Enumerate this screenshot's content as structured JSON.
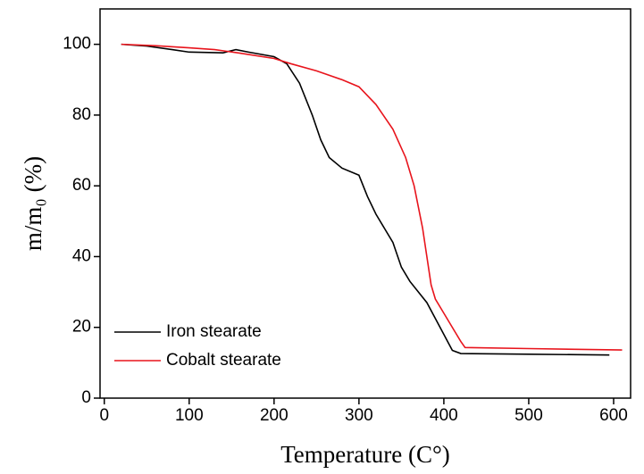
{
  "chart_data": {
    "type": "line",
    "xlabel": "Temperature (C°)",
    "ylabel": "m/m₀ (%)",
    "xlim": [
      -5,
      620
    ],
    "ylim": [
      0,
      110
    ],
    "xticks": [
      0,
      100,
      200,
      300,
      400,
      500,
      600
    ],
    "yticks": [
      0,
      20,
      40,
      60,
      80,
      100
    ],
    "legend": "lower left",
    "series": [
      {
        "name": "Iron stearate",
        "color": "#000000",
        "x": [
          20,
          50,
          80,
          100,
          140,
          155,
          170,
          200,
          215,
          230,
          245,
          255,
          265,
          280,
          300,
          310,
          320,
          330,
          340,
          350,
          360,
          380,
          400,
          410,
          420,
          500,
          595
        ],
        "values": [
          100,
          99.5,
          98.5,
          97.8,
          97.6,
          98.5,
          97.8,
          96.5,
          94.5,
          89,
          80,
          73,
          68,
          65,
          63,
          57,
          52,
          48,
          44,
          37,
          33,
          27,
          18,
          13.5,
          12.6,
          12.4,
          12.2
        ]
      },
      {
        "name": "Cobalt stearate",
        "color": "#e8141c",
        "x": [
          20,
          60,
          100,
          130,
          160,
          200,
          220,
          250,
          280,
          300,
          320,
          340,
          355,
          365,
          375,
          380,
          385,
          390,
          400,
          410,
          420,
          425,
          500,
          610
        ],
        "values": [
          100,
          99.6,
          99,
          98.5,
          97.5,
          96,
          94.5,
          92.5,
          90,
          88,
          83,
          76,
          68,
          60,
          48,
          40,
          32,
          28,
          24,
          20,
          16,
          14.3,
          14,
          13.6
        ]
      }
    ]
  }
}
